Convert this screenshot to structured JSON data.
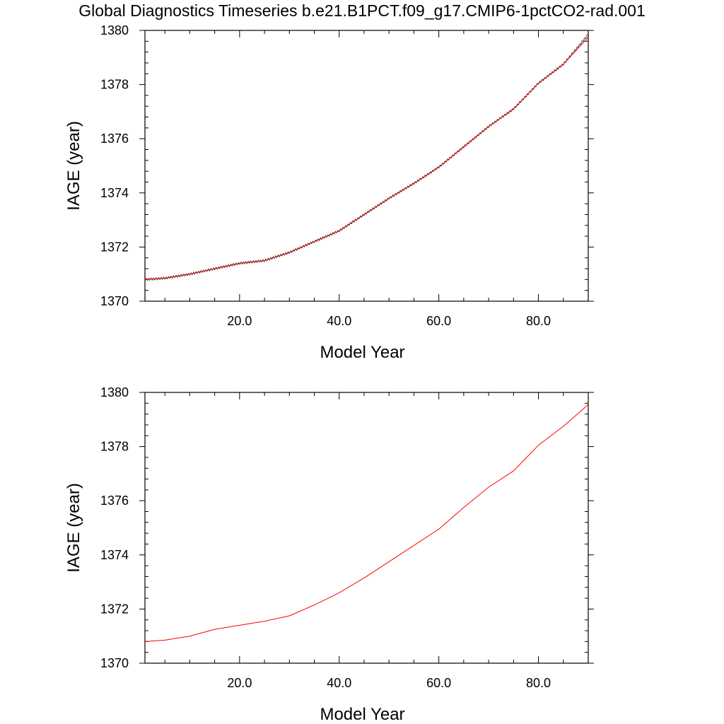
{
  "figure_title": "Global Diagnostics Timeseries b.e21.B1PCT.f09_g17.CMIP6-1pctCO2-rad.001",
  "colors": {
    "monthly_line": "#333333",
    "annual_line": "#ff0000",
    "axes": "#000000"
  },
  "chart_data": [
    {
      "type": "line",
      "title": "",
      "xlabel": "Model Year",
      "ylabel": "IAGE (year)",
      "xlim": [
        1,
        90
      ],
      "ylim": [
        1370,
        1380
      ],
      "x_ticks": [
        20,
        40,
        60,
        80
      ],
      "x_tick_labels": [
        "20.0",
        "40.0",
        "60.0",
        "80.0"
      ],
      "y_ticks": [
        1370,
        1372,
        1374,
        1376,
        1378,
        1380
      ],
      "y_tick_labels": [
        "1370",
        "1372",
        "1374",
        "1376",
        "1378",
        "1380"
      ],
      "series": [
        {
          "style": "monthly",
          "x": [
            1,
            5,
            10,
            15,
            20,
            25,
            30,
            35,
            40,
            45,
            50,
            55,
            60,
            65,
            70,
            75,
            80,
            85,
            90
          ],
          "values": [
            1370.8,
            1370.85,
            1371.0,
            1371.2,
            1371.4,
            1371.5,
            1371.8,
            1372.2,
            1372.6,
            1373.2,
            1373.8,
            1374.35,
            1374.95,
            1375.7,
            1376.45,
            1377.1,
            1378.05,
            1378.75,
            1379.85
          ]
        },
        {
          "style": "annual",
          "x": [
            1,
            5,
            10,
            15,
            20,
            25,
            30,
            35,
            40,
            45,
            50,
            55,
            60,
            65,
            70,
            75,
            80,
            85,
            90
          ],
          "values": [
            1370.8,
            1370.85,
            1371.0,
            1371.2,
            1371.4,
            1371.5,
            1371.8,
            1372.2,
            1372.6,
            1373.2,
            1373.8,
            1374.35,
            1374.95,
            1375.7,
            1376.45,
            1377.1,
            1378.05,
            1378.75,
            1379.75
          ]
        }
      ]
    },
    {
      "type": "line",
      "title": "",
      "xlabel": "Model Year",
      "ylabel": "IAGE (year)",
      "xlim": [
        1,
        90
      ],
      "ylim": [
        1370,
        1380
      ],
      "x_ticks": [
        20,
        40,
        60,
        80
      ],
      "x_tick_labels": [
        "20.0",
        "40.0",
        "60.0",
        "80.0"
      ],
      "y_ticks": [
        1370,
        1372,
        1374,
        1376,
        1378,
        1380
      ],
      "y_tick_labels": [
        "1370",
        "1372",
        "1374",
        "1376",
        "1378",
        "1380"
      ],
      "series": [
        {
          "style": "annual",
          "x": [
            1,
            5,
            10,
            15,
            20,
            25,
            30,
            35,
            40,
            45,
            50,
            55,
            60,
            65,
            70,
            75,
            80,
            85,
            90
          ],
          "values": [
            1370.8,
            1370.85,
            1371.0,
            1371.25,
            1371.4,
            1371.55,
            1371.75,
            1372.15,
            1372.6,
            1373.15,
            1373.75,
            1374.35,
            1374.95,
            1375.75,
            1376.5,
            1377.1,
            1378.05,
            1378.75,
            1379.55
          ]
        }
      ]
    }
  ]
}
